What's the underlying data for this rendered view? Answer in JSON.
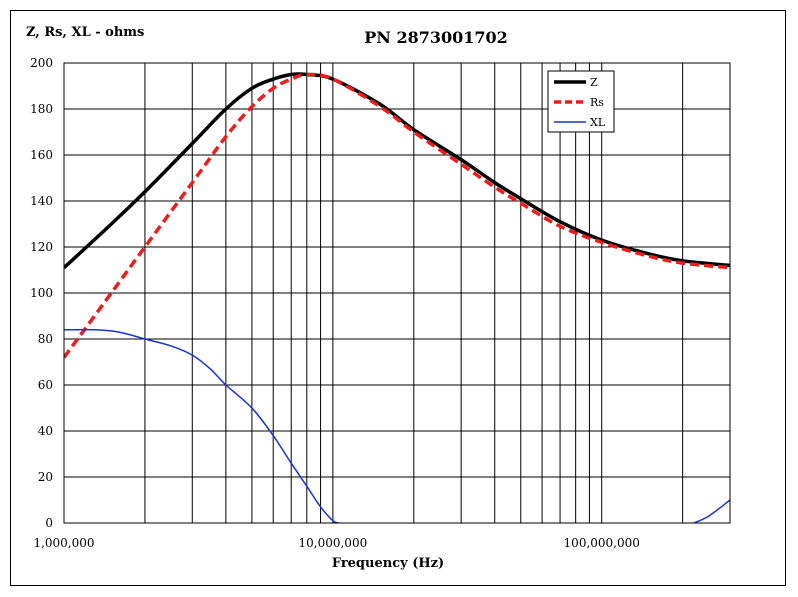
{
  "chart_data": {
    "type": "line",
    "title": "PN 2873001702",
    "ylabel": "Z, Rs, XL - ohms",
    "xlabel": "Frequency (Hz)",
    "xscale": "log",
    "xlim": [
      1000000,
      300000000
    ],
    "ylim": [
      0,
      200
    ],
    "yticks": [
      0,
      20,
      40,
      60,
      80,
      100,
      120,
      140,
      160,
      180,
      200
    ],
    "ytick_labels": [
      "0",
      "20",
      "40",
      "60",
      "80",
      "100",
      "120",
      "140",
      "160",
      "180",
      "200"
    ],
    "xtick_values": [
      1000000,
      10000000,
      100000000
    ],
    "xtick_labels": [
      "1,000,000",
      "10,000,000",
      "100,000,000"
    ],
    "grid": true,
    "legend_position": "top-right",
    "series": [
      {
        "name": "Z",
        "color": "#000000",
        "style": "solid-thick",
        "x": [
          1000000,
          1500000,
          2000000,
          3000000,
          4000000,
          5000000,
          6000000,
          7000000,
          8000000,
          10000000,
          15000000,
          20000000,
          30000000,
          40000000,
          50000000,
          70000000,
          100000000,
          150000000,
          200000000,
          300000000
        ],
        "values": [
          111,
          130,
          144,
          165,
          180,
          189,
          193,
          195,
          195,
          193,
          182,
          171,
          158,
          148,
          141,
          131,
          123,
          117,
          114,
          112
        ]
      },
      {
        "name": "Rs",
        "color": "#ee1c1c",
        "style": "dashed-thick",
        "x": [
          1000000,
          1500000,
          2000000,
          3000000,
          4000000,
          5000000,
          6000000,
          7000000,
          8000000,
          10000000,
          15000000,
          20000000,
          30000000,
          40000000,
          50000000,
          70000000,
          100000000,
          150000000,
          200000000,
          300000000
        ],
        "values": [
          72,
          100,
          120,
          148,
          168,
          181,
          189,
          193,
          195,
          193,
          181,
          170,
          156,
          146,
          139,
          129,
          122,
          116,
          113,
          111
        ]
      },
      {
        "name": "XL",
        "color": "#1a33cc",
        "style": "solid-thin",
        "x": [
          1000000,
          1300000,
          1600000,
          2000000,
          2500000,
          3000000,
          3500000,
          4000000,
          5000000,
          6000000,
          7000000,
          8000000,
          9000000,
          10000000,
          10500000
        ],
        "values": [
          84,
          84,
          83,
          80,
          77,
          73,
          67,
          60,
          50,
          38,
          26,
          16,
          7,
          1,
          0
        ],
        "x2": [
          220000000,
          250000000,
          300000000
        ],
        "values2": [
          0,
          3,
          10
        ]
      }
    ]
  }
}
